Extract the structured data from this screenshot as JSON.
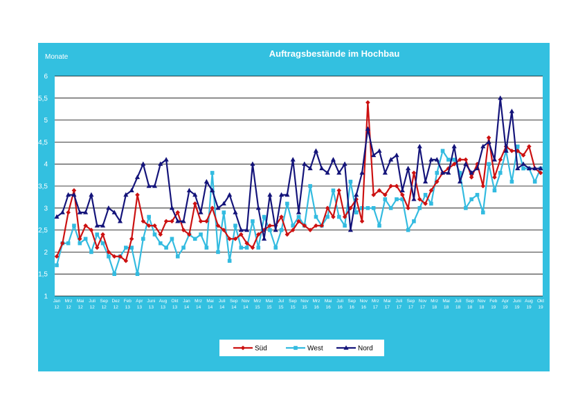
{
  "chart_data": {
    "type": "line",
    "title": "Auftragsbestände im Hochbau",
    "ylabel": "Monate",
    "xlabel": "",
    "ylim": [
      1,
      6
    ],
    "yticks": [
      "1",
      "1,5",
      "2",
      "2,5",
      "3",
      "3,5",
      "4",
      "4,5",
      "5",
      "5,5",
      "6"
    ],
    "grid": true,
    "legend_position": "bottom",
    "colors": {
      "frame": "#33c0e0",
      "Süd": "#cc1111",
      "West": "#33bbe0",
      "Nord": "#14147a"
    },
    "x_ticks": [
      [
        "Jan",
        "12"
      ],
      [
        "Mrz",
        "12"
      ],
      [
        "Mai",
        "12"
      ],
      [
        "Juli",
        "12"
      ],
      [
        "Sep",
        "12"
      ],
      [
        "Dez",
        "12"
      ],
      [
        "Feb",
        "13"
      ],
      [
        "Apr",
        "13"
      ],
      [
        "Juni",
        "13"
      ],
      [
        "Aug",
        "13"
      ],
      [
        "Okt",
        "13"
      ],
      [
        "Jan",
        "14"
      ],
      [
        "Mrz",
        "14"
      ],
      [
        "Mai",
        "14"
      ],
      [
        "Juli",
        "14"
      ],
      [
        "Sep",
        "14"
      ],
      [
        "Nov",
        "14"
      ],
      [
        "Mrz",
        "15"
      ],
      [
        "Mai",
        "15"
      ],
      [
        "Jul",
        "15"
      ],
      [
        "Sep",
        "15"
      ],
      [
        "Nov",
        "15"
      ],
      [
        "Mrz",
        "16"
      ],
      [
        "Mai",
        "16"
      ],
      [
        "Juli",
        "16"
      ],
      [
        "Sep",
        "16"
      ],
      [
        "Nov",
        "16"
      ],
      [
        "Mrz",
        "17"
      ],
      [
        "Mai",
        "17"
      ],
      [
        "Juli",
        "17"
      ],
      [
        "Sep",
        "17"
      ],
      [
        "Nov",
        "17"
      ],
      [
        "Mrz",
        "18"
      ],
      [
        "Mai",
        "18"
      ],
      [
        "Juli",
        "18"
      ],
      [
        "Sep",
        "18"
      ],
      [
        "Nov",
        "18"
      ],
      [
        "Feb",
        "19"
      ],
      [
        "Apr",
        "19"
      ],
      [
        "Juni",
        "19"
      ],
      [
        "Aug",
        "19"
      ],
      [
        "Okt",
        "19"
      ]
    ],
    "series": [
      {
        "name": "Süd",
        "marker": "diamond",
        "values": [
          1.9,
          2.2,
          2.9,
          3.4,
          2.3,
          2.6,
          2.5,
          2.1,
          2.4,
          2.0,
          1.9,
          1.9,
          1.8,
          2.3,
          3.3,
          2.7,
          2.6,
          2.6,
          2.4,
          2.7,
          2.7,
          2.9,
          2.5,
          2.4,
          3.1,
          2.7,
          2.7,
          3.0,
          2.6,
          2.5,
          2.3,
          2.3,
          2.4,
          2.2,
          2.1,
          2.4,
          2.5,
          2.6,
          2.6,
          2.8,
          2.4,
          2.5,
          2.7,
          2.6,
          2.5,
          2.6,
          2.6,
          3.0,
          2.8,
          3.4,
          2.8,
          3.0,
          3.2,
          2.7,
          5.4,
          3.3,
          3.4,
          3.3,
          3.5,
          3.5,
          3.3,
          3.0,
          3.8,
          3.2,
          3.1,
          3.4,
          3.6,
          3.8,
          3.9,
          4.0,
          4.1,
          4.1,
          3.7,
          4.0,
          3.5,
          4.6,
          3.7,
          4.1,
          4.4,
          4.3,
          4.3,
          4.2,
          4.4,
          3.9,
          3.8
        ]
      },
      {
        "name": "West",
        "marker": "square",
        "values": [
          1.7,
          2.2,
          2.2,
          2.6,
          2.2,
          2.3,
          2.0,
          2.4,
          2.2,
          1.9,
          1.5,
          1.9,
          2.1,
          2.1,
          1.5,
          2.3,
          2.8,
          2.4,
          2.2,
          2.1,
          2.3,
          1.9,
          2.1,
          2.4,
          2.3,
          2.4,
          2.1,
          3.8,
          2.0,
          2.9,
          1.8,
          2.6,
          2.1,
          2.1,
          2.7,
          2.1,
          2.8,
          2.5,
          2.1,
          2.5,
          3.1,
          2.6,
          2.8,
          2.6,
          3.5,
          2.8,
          2.6,
          2.8,
          3.4,
          2.8,
          2.6,
          3.6,
          2.9,
          3.0,
          3.0,
          3.0,
          2.6,
          3.2,
          3.0,
          3.2,
          3.2,
          2.5,
          2.7,
          3.0,
          3.3,
          3.1,
          3.8,
          4.3,
          4.1,
          4.1,
          3.8,
          3.0,
          3.2,
          3.3,
          2.9,
          4.0,
          3.4,
          3.8,
          4.3,
          3.6,
          4.4,
          3.9,
          3.9,
          3.6,
          3.9
        ]
      },
      {
        "name": "Nord",
        "marker": "triangle",
        "values": [
          2.8,
          2.9,
          3.3,
          3.3,
          2.9,
          2.9,
          3.3,
          2.6,
          2.6,
          3.0,
          2.9,
          2.7,
          3.3,
          3.4,
          3.7,
          4.0,
          3.5,
          3.5,
          4.0,
          4.1,
          3.0,
          2.7,
          2.7,
          3.4,
          3.3,
          2.9,
          3.6,
          3.4,
          3.0,
          3.1,
          3.3,
          2.9,
          2.5,
          2.5,
          4.0,
          3.0,
          2.3,
          3.3,
          2.5,
          3.3,
          3.3,
          4.1,
          2.9,
          4.0,
          3.9,
          4.3,
          3.9,
          3.8,
          4.1,
          3.8,
          4.0,
          2.5,
          3.3,
          3.8,
          4.8,
          4.2,
          4.3,
          3.8,
          4.1,
          4.2,
          3.4,
          3.9,
          3.2,
          4.4,
          3.6,
          4.1,
          4.1,
          3.8,
          3.8,
          4.4,
          3.6,
          4.0,
          3.8,
          3.9,
          4.4,
          4.5,
          4.1,
          5.5,
          4.3,
          5.2,
          3.9,
          4.0,
          3.9,
          3.9,
          3.9
        ]
      }
    ]
  }
}
